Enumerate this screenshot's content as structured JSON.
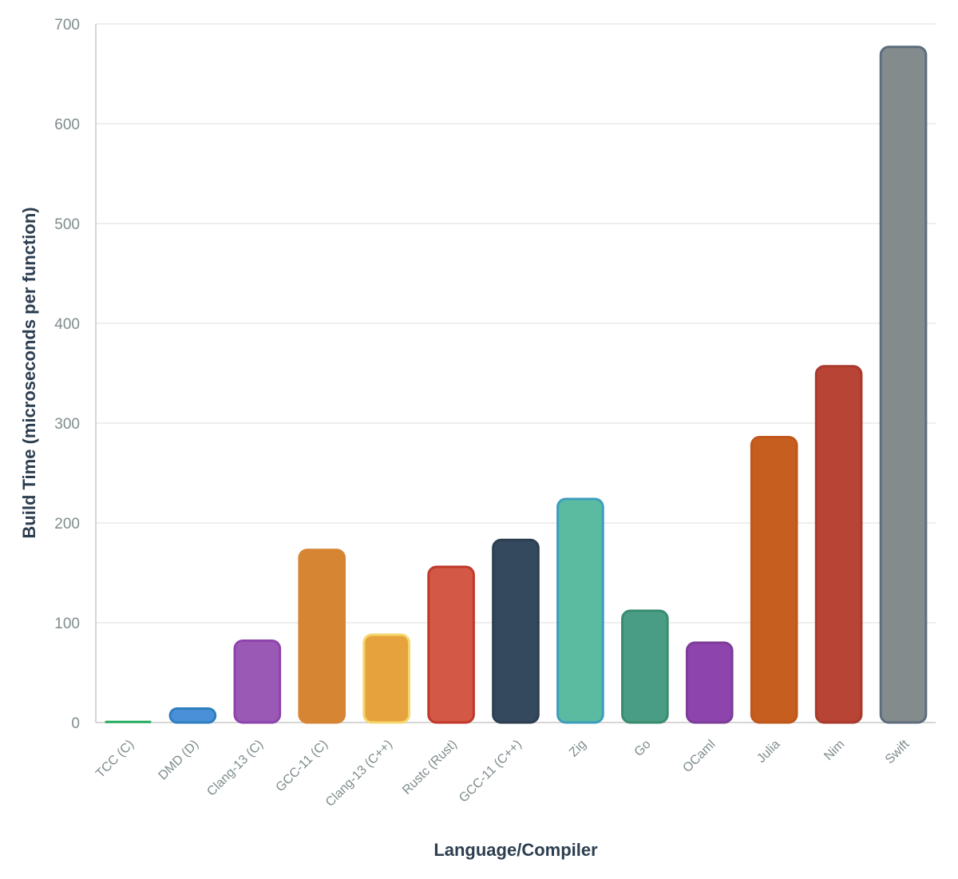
{
  "chart_data": {
    "type": "bar",
    "xlabel": "Language/Compiler",
    "ylabel": "Build Time (microseconds per function)",
    "ylim": [
      0,
      700
    ],
    "yticks": [
      0,
      100,
      200,
      300,
      400,
      500,
      600,
      700
    ],
    "grid": true,
    "categories": [
      "TCC (C)",
      "DMD (D)",
      "Clang-13 (C)",
      "GCC-11 (C)",
      "Clang-13 (C++)",
      "Rustc (Rust)",
      "GCC-11 (C++)",
      "Zig",
      "Go",
      "OCaml",
      "Julia",
      "Nim",
      "Swift"
    ],
    "values": [
      1,
      14,
      82,
      173,
      88,
      156,
      183,
      224,
      112,
      80,
      286,
      357,
      677
    ],
    "colors": [
      "#27ae60",
      "#4a90d9",
      "#9b59b6",
      "#d68533",
      "#e6a23c",
      "#d35845",
      "#34495e",
      "#5bbba0",
      "#4a9d85",
      "#8e44ad",
      "#c65e1f",
      "#b74434",
      "#848b8c"
    ],
    "border_colors": [
      "#27ae60",
      "#2f7fc0",
      "#8e44ad",
      "#d68533",
      "#f5d76e",
      "#c0392b",
      "#2c3e50",
      "#3d9ebb",
      "#3a8c70",
      "#7d3c98",
      "#c0571c",
      "#a93a2c",
      "#5d6d7e"
    ]
  }
}
